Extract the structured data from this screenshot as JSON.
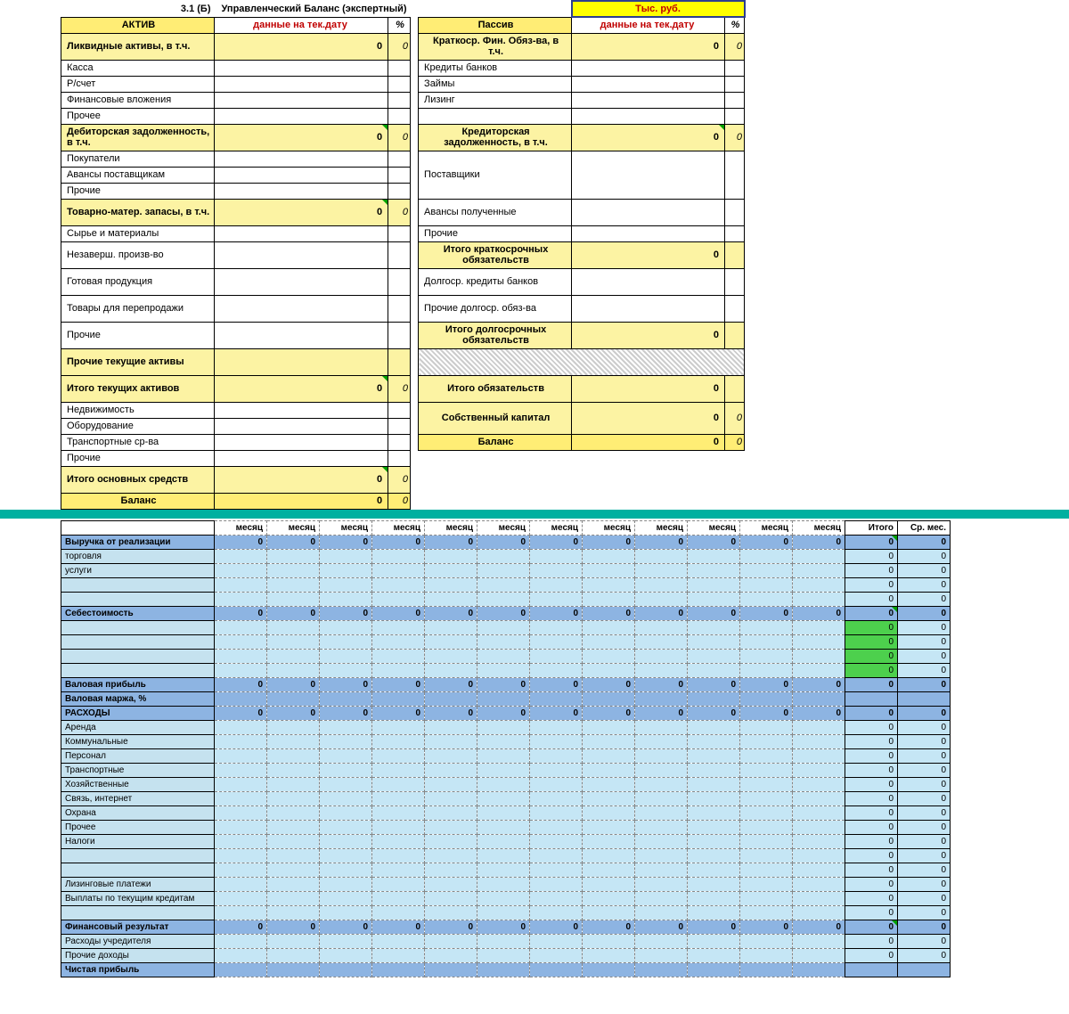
{
  "title_num": "3.1 (Б)",
  "title_text": "Управленческий Баланс (экспертный)",
  "units": "Тыс. руб.",
  "colors": {
    "yellow_light": "#fcf3a3",
    "yellow_strong": "#ffed75",
    "yellow_bright": "#ffff00",
    "blue_header": "#8db4e2",
    "blue_light": "#c5e6f5",
    "teal": "#00b0a0",
    "green": "#4dd04d",
    "red_text": "#c00000"
  },
  "balance": {
    "left_header": "АКТИВ",
    "right_header": "Пассив",
    "date_hdr": "данные на тек.дату",
    "pct": "%",
    "zero": "0",
    "zero_it": "0",
    "left": [
      {
        "label": "Ликвидные активы, в т.ч.",
        "value": "0",
        "pct": "0",
        "style": "yel bold",
        "tall": true
      },
      {
        "label": "Касса"
      },
      {
        "label": "Р/счет"
      },
      {
        "label": "Финансовые вложения"
      },
      {
        "label": "Прочее"
      },
      {
        "label": "Дебиторская задолженность, в т.ч.",
        "value": "0",
        "pct": "0",
        "style": "yel bold",
        "tall": true,
        "mark": true
      },
      {
        "label": "Покупатели"
      },
      {
        "label": "Авансы поставщикам"
      },
      {
        "label": "Прочие"
      },
      {
        "label": "Товарно-матер. запасы, в т.ч.",
        "value": "0",
        "pct": "0",
        "style": "yel bold",
        "tall": true,
        "mark": true
      },
      {
        "label": "Сырье и материалы"
      },
      {
        "label": "Незаверш. произв-во"
      },
      {
        "label": "Готовая продукция"
      },
      {
        "label": "Товары для перепродажи"
      },
      {
        "label": "Прочие"
      },
      {
        "label": "Прочие текущие активы",
        "style": "yel bold",
        "tall": true
      },
      {
        "label": "Итого текущих активов",
        "value": "0",
        "pct": "0",
        "style": "yel bold",
        "mark": true,
        "tall": true
      },
      {
        "label": "Недвижимость"
      },
      {
        "label": "Оборудование"
      },
      {
        "label": "Транспортные ср-ва",
        "tall_half": true
      },
      {
        "label": "Прочие"
      },
      {
        "label": "Итого основных средств",
        "value": "0",
        "pct": "0",
        "style": "yel bold",
        "mark": true,
        "tall": true
      },
      {
        "label": "Баланс",
        "value": "0",
        "pct": "0",
        "style": "yel-strong bold center"
      }
    ],
    "right": [
      {
        "label": "Краткоср. Фин. Обяз-ва, в т.ч.",
        "value": "0",
        "pct": "0",
        "style": "yel bold",
        "tall": true
      },
      {
        "label": "Кредиты банков"
      },
      {
        "label": "Займы"
      },
      {
        "label": "Лизинг"
      },
      {
        "label": ""
      },
      {
        "label": "Кредиторская задолженность, в т.ч.",
        "value": "0",
        "pct": "0",
        "style": "yel bold",
        "tall": true,
        "mark": true
      },
      {
        "label": "Поставщики",
        "span": 3
      },
      {
        "label": "Авансы полученные",
        "tall": true
      },
      {
        "label": "Прочие"
      },
      {
        "label": "Итого краткосрочных обязательств",
        "value": "0",
        "style": "yel bold",
        "tall": true,
        "span_lbl": 2
      },
      {
        "label": "Долгоср. кредиты банков",
        "tall": true
      },
      {
        "label": "Прочие долгоср. обяз-ва",
        "tall": true
      },
      {
        "label": "Итого долгосрочных обязательств",
        "value": "0",
        "style": "yel bold",
        "tall": true
      },
      {
        "label": "",
        "hatched": true
      },
      {
        "label": "Итого обязательств",
        "value": "0",
        "style": "yel bold",
        "tall": true
      },
      {
        "label": "Собственный капитал",
        "value": "0",
        "pct": "0",
        "style": "yel bold",
        "tall2": true
      },
      {
        "label": "Баланс",
        "value": "0",
        "pct": "0",
        "style": "yel-strong bold center"
      }
    ]
  },
  "opiu": {
    "month_hdr": "месяц",
    "total_hdr": "Итого",
    "avg_hdr": "Ср. мес.",
    "months": 12,
    "rows": [
      {
        "label": "Выручка от реализации",
        "type": "hdr",
        "vals": [
          "0",
          "0",
          "0",
          "0",
          "0",
          "0",
          "0",
          "0",
          "0",
          "0",
          "0",
          "0"
        ],
        "tot": "0",
        "avg": "0",
        "mark": true
      },
      {
        "label": "торговля",
        "type": "sub",
        "tot": "0",
        "avg": "0"
      },
      {
        "label": "услуги",
        "type": "sub",
        "tot": "0",
        "avg": "0"
      },
      {
        "label": "",
        "type": "sub",
        "tot": "0",
        "avg": "0"
      },
      {
        "label": "",
        "type": "sub",
        "tot": "0",
        "avg": "0"
      },
      {
        "label": "Себестоимость",
        "type": "hdr",
        "vals": [
          "0",
          "0",
          "0",
          "0",
          "0",
          "0",
          "0",
          "0",
          "0",
          "0",
          "0",
          "0"
        ],
        "tot": "0",
        "avg": "0",
        "mark": true
      },
      {
        "label": "",
        "type": "sub",
        "tot_green": "0",
        "avg": "0"
      },
      {
        "label": "",
        "type": "sub",
        "tot_green": "0",
        "avg": "0"
      },
      {
        "label": "",
        "type": "sub",
        "tot_green": "0",
        "avg": "0"
      },
      {
        "label": "",
        "type": "sub",
        "tot_green": "0",
        "avg": "0"
      },
      {
        "label": "Валовая прибыль",
        "type": "hdr",
        "vals": [
          "0",
          "0",
          "0",
          "0",
          "0",
          "0",
          "0",
          "0",
          "0",
          "0",
          "0",
          "0"
        ],
        "tot": "0",
        "avg": "0"
      },
      {
        "label": "Валовая маржа, %",
        "type": "hdr_noval"
      },
      {
        "label": "РАСХОДЫ",
        "type": "hdr",
        "vals": [
          "0",
          "0",
          "0",
          "0",
          "0",
          "0",
          "0",
          "0",
          "0",
          "0",
          "0",
          "0"
        ],
        "tot": "0",
        "avg": "0"
      },
      {
        "label": "Аренда",
        "type": "sub",
        "tot": "0",
        "avg": "0"
      },
      {
        "label": "Коммунальные",
        "type": "sub",
        "tot": "0",
        "avg": "0"
      },
      {
        "label": "Персонал",
        "type": "sub",
        "tot": "0",
        "avg": "0"
      },
      {
        "label": "Транспортные",
        "type": "sub",
        "tot": "0",
        "avg": "0"
      },
      {
        "label": "Хозяйственные",
        "type": "sub",
        "tot": "0",
        "avg": "0"
      },
      {
        "label": "Связь, интернет",
        "type": "sub",
        "tot": "0",
        "avg": "0"
      },
      {
        "label": "Охрана",
        "type": "sub",
        "tot": "0",
        "avg": "0"
      },
      {
        "label": "Прочее",
        "type": "sub",
        "tot": "0",
        "avg": "0"
      },
      {
        "label": "Налоги",
        "type": "sub",
        "tot": "0",
        "avg": "0"
      },
      {
        "label": "",
        "type": "sub",
        "tot": "0",
        "avg": "0"
      },
      {
        "label": "",
        "type": "sub",
        "tot": "0",
        "avg": "0"
      },
      {
        "label": "Лизинговые платежи",
        "type": "sub",
        "tot": "0",
        "avg": "0"
      },
      {
        "label": "Выплаты по текущим кредитам",
        "type": "sub",
        "tot": "0",
        "avg": "0"
      },
      {
        "label": "",
        "type": "sub",
        "tot": "0",
        "avg": "0"
      },
      {
        "label": "Финансовый результат",
        "type": "hdr",
        "vals": [
          "0",
          "0",
          "0",
          "0",
          "0",
          "0",
          "0",
          "0",
          "0",
          "0",
          "0",
          "0"
        ],
        "tot": "0",
        "avg": "0",
        "mark": true
      },
      {
        "label": "Расходы учредителя",
        "type": "sub",
        "tot": "0",
        "avg": "0"
      },
      {
        "label": "Прочие доходы",
        "type": "sub",
        "tot": "0",
        "avg": "0"
      },
      {
        "label": "Чистая прибыль",
        "type": "hdr_noval"
      }
    ]
  }
}
